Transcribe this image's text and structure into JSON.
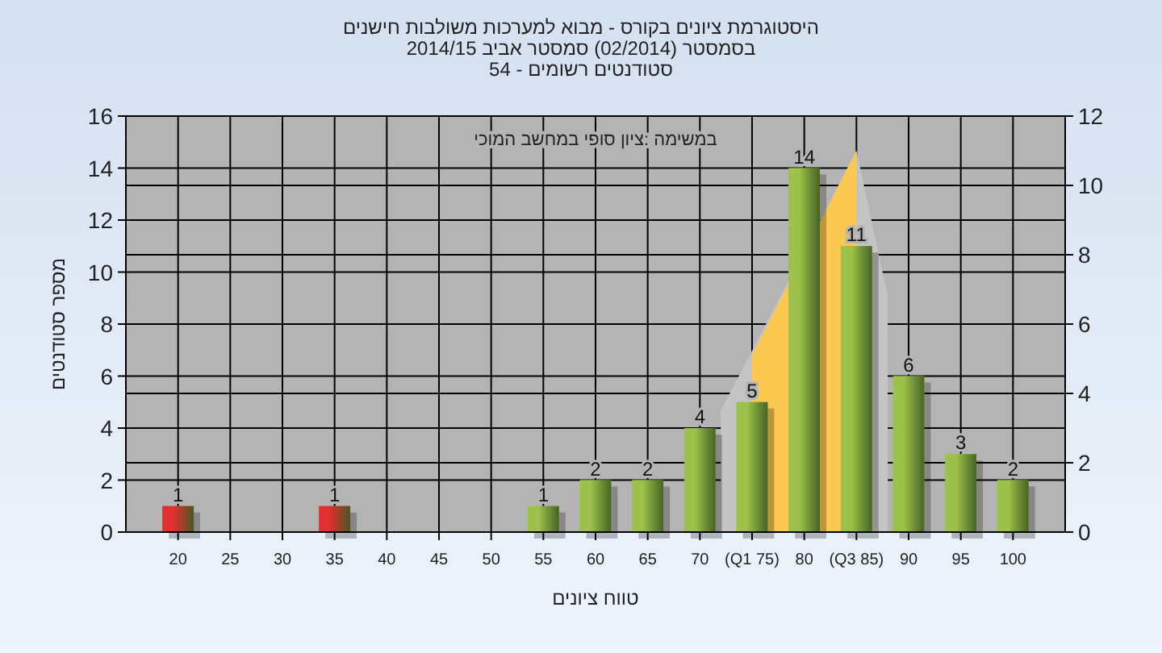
{
  "chart_data": {
    "type": "bar",
    "title": "היסטוגרמת ציונים בקורס - מבוא למערכות משולבות חישנים",
    "subtitle": "בסמסטר (02/2014) סמסטר אביב 2014/15\nסטודנטים רשומים - 54",
    "xlabel": "טווח ציונים",
    "ylabel": "מספר סטודנטים",
    "annotations": [
      "במשימה :ציון סופי במחשב המוכי"
    ],
    "xlim": [
      15,
      105
    ],
    "xticks": [
      20,
      25,
      30,
      35,
      40,
      45,
      50,
      55,
      60,
      65,
      70,
      {
        "value": 75,
        "label": "(Q1 75)"
      },
      80,
      {
        "value": 85,
        "label": "(Q3 85)"
      },
      90,
      95,
      100
    ],
    "ylim": [
      0,
      16
    ],
    "yticks": [
      0,
      2,
      4,
      6,
      8,
      10,
      12,
      14,
      16
    ],
    "y2lim": [
      0,
      12
    ],
    "y2ticks": [
      0,
      2,
      4,
      6,
      8,
      10,
      12
    ],
    "grid": true,
    "series": [
      {
        "type": "area",
        "axis": "y2",
        "color": "#c4c4c4",
        "x": [
          72,
          85,
          88
        ],
        "values": [
          3.5,
          11,
          6.8
        ]
      },
      {
        "type": "area",
        "axis": "y2",
        "color": "#fcc850",
        "x": [
          75,
          85
        ],
        "values": [
          5.1,
          11
        ]
      },
      {
        "color": "#e03030",
        "x": [
          20,
          35
        ],
        "values": [
          1,
          1
        ],
        "value_labels": [
          "1",
          "1"
        ]
      },
      {
        "color": "#9cc24a",
        "x": [
          55,
          60,
          65,
          70,
          75,
          80,
          85,
          90,
          95,
          100
        ],
        "values": [
          1,
          2,
          2,
          4,
          5,
          14,
          11,
          6,
          3,
          2
        ],
        "value_labels": [
          "1",
          "2",
          "2",
          "4",
          "5",
          "14",
          "11",
          "6",
          "3",
          "2"
        ]
      }
    ]
  }
}
